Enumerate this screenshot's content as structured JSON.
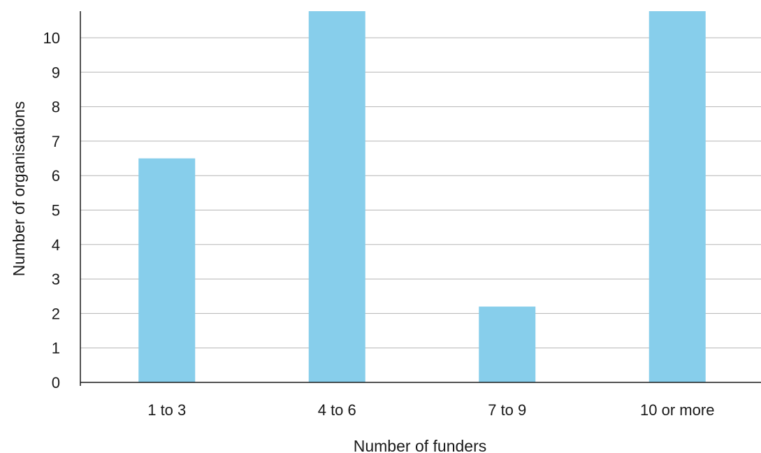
{
  "chart_data": {
    "type": "bar",
    "title": "",
    "xlabel": "Number of funders",
    "ylabel": "Number of organisations",
    "categories": [
      "1 to 3",
      "4 to 6",
      "7 to 9",
      "10 or more"
    ],
    "values": [
      6.5,
      10.8,
      2.2,
      10.8
    ],
    "ylim": [
      0,
      10.8
    ],
    "yticks": [
      "0",
      "1",
      "2",
      "3",
      "4",
      "5",
      "6",
      "7",
      "8",
      "9",
      "10"
    ],
    "grid": true,
    "bar_color": "#87CEEB"
  }
}
